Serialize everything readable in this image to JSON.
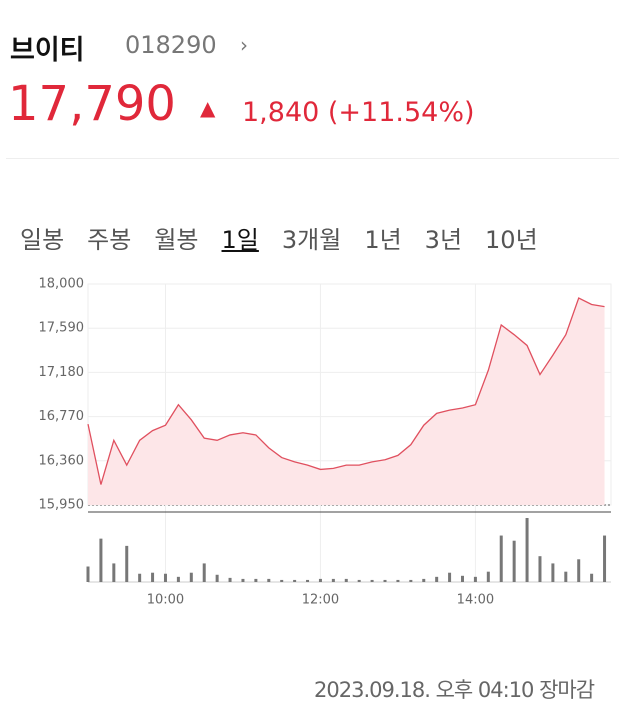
{
  "header": {
    "name": "브이티",
    "code": "018290"
  },
  "price": {
    "current": "17,790",
    "change": "1,840",
    "change_pct": "(+11.54%)"
  },
  "tabs": [
    "일봉",
    "주봉",
    "월봉",
    "1일",
    "3개월",
    "1년",
    "3년",
    "10년"
  ],
  "selected_tab": "1일",
  "chart_data": {
    "type": "line",
    "color": "#e0505f",
    "fill": "#fde6e8",
    "volume_color": "#777777",
    "grid": true,
    "x": [
      540,
      550,
      560,
      570,
      580,
      590,
      600,
      610,
      620,
      630,
      640,
      650,
      660,
      670,
      680,
      690,
      700,
      710,
      720,
      730,
      740,
      750,
      760,
      770,
      780,
      790,
      800,
      810,
      820,
      830,
      840,
      850,
      860,
      870,
      880,
      890,
      900,
      910,
      920,
      930,
      940
    ],
    "values": [
      16700,
      16140,
      16550,
      16320,
      16550,
      16640,
      16690,
      16880,
      16740,
      16570,
      16550,
      16600,
      16620,
      16600,
      16480,
      16390,
      16350,
      16320,
      16280,
      16290,
      16320,
      16320,
      16350,
      16370,
      16410,
      16510,
      16690,
      16800,
      16830,
      16850,
      16880,
      17200,
      17620,
      17530,
      17430,
      17160,
      17340,
      17530,
      17870,
      17810,
      17790
    ],
    "volume": [
      15,
      42,
      18,
      35,
      8,
      9,
      8,
      5,
      9,
      18,
      7,
      4,
      3,
      3,
      3,
      2,
      2,
      2,
      3,
      3,
      3,
      2,
      2,
      2,
      2,
      2,
      3,
      5,
      9,
      6,
      5,
      10,
      45,
      40,
      62,
      25,
      18,
      10,
      22,
      8,
      45
    ],
    "xlim": [
      540,
      945
    ],
    "xticks": [
      {
        "value": 600,
        "label": "10:00"
      },
      {
        "value": 720,
        "label": "12:00"
      },
      {
        "value": 840,
        "label": "14:00"
      }
    ],
    "ylim": [
      15950,
      18000
    ],
    "yticks": [
      {
        "value": 15950,
        "label": "15,950"
      },
      {
        "value": 16360,
        "label": "16,360"
      },
      {
        "value": 16770,
        "label": "16,770"
      },
      {
        "value": 17180,
        "label": "17,180"
      },
      {
        "value": 17590,
        "label": "17,590"
      },
      {
        "value": 18000,
        "label": "18,000"
      }
    ]
  },
  "footer": "2023.09.18. 오후 04:10 장마감"
}
